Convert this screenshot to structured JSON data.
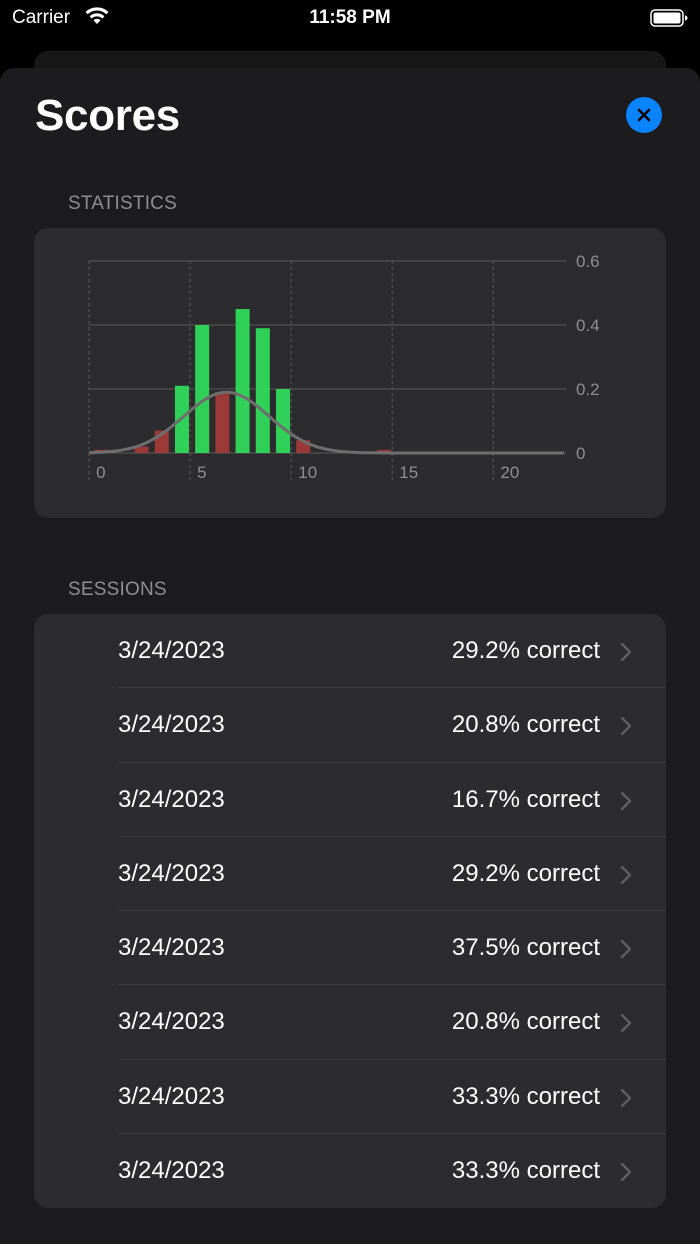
{
  "status_bar": {
    "carrier": "Carrier",
    "time": "11:58 PM"
  },
  "sheet": {
    "title": "Scores",
    "close_icon": "xmark-icon"
  },
  "statistics": {
    "header": "STATISTICS"
  },
  "chart_data": {
    "type": "bar",
    "x_ticks": [
      "0",
      "5",
      "10",
      "15",
      "20"
    ],
    "y_ticks": [
      "0",
      "0.2",
      "0.4",
      "0.6"
    ],
    "xlim": [
      -0.6,
      23
    ],
    "ylim": [
      0,
      0.6
    ],
    "grid": true,
    "axis_position": "right",
    "series": [
      {
        "color": "#9b3a38",
        "points": [
          [
            0,
            0.01
          ],
          [
            2,
            0.02
          ],
          [
            3,
            0.07
          ],
          [
            4,
            0.09
          ],
          [
            5,
            0.15
          ],
          [
            6,
            0.19
          ],
          [
            7,
            0.2
          ],
          [
            8,
            0.14
          ],
          [
            9,
            0.08
          ],
          [
            10,
            0.04
          ],
          [
            14,
            0.01
          ]
        ]
      },
      {
        "color": "#30d158",
        "points": [
          [
            4,
            0.21
          ],
          [
            5,
            0.4
          ],
          [
            7,
            0.45
          ],
          [
            8,
            0.39
          ],
          [
            9,
            0.2
          ]
        ]
      }
    ],
    "curve": {
      "color": "#6e6e6e",
      "mean": 6.2,
      "sd": 2.1,
      "peak": 0.19
    }
  },
  "sessions": {
    "header": "SESSIONS",
    "rows": [
      {
        "date": "3/24/2023",
        "score": "29.2% correct"
      },
      {
        "date": "3/24/2023",
        "score": "20.8% correct"
      },
      {
        "date": "3/24/2023",
        "score": "16.7% correct"
      },
      {
        "date": "3/24/2023",
        "score": "29.2% correct"
      },
      {
        "date": "3/24/2023",
        "score": "37.5% correct"
      },
      {
        "date": "3/24/2023",
        "score": "20.8% correct"
      },
      {
        "date": "3/24/2023",
        "score": "33.3% correct"
      },
      {
        "date": "3/24/2023",
        "score": "33.3% correct"
      }
    ]
  }
}
